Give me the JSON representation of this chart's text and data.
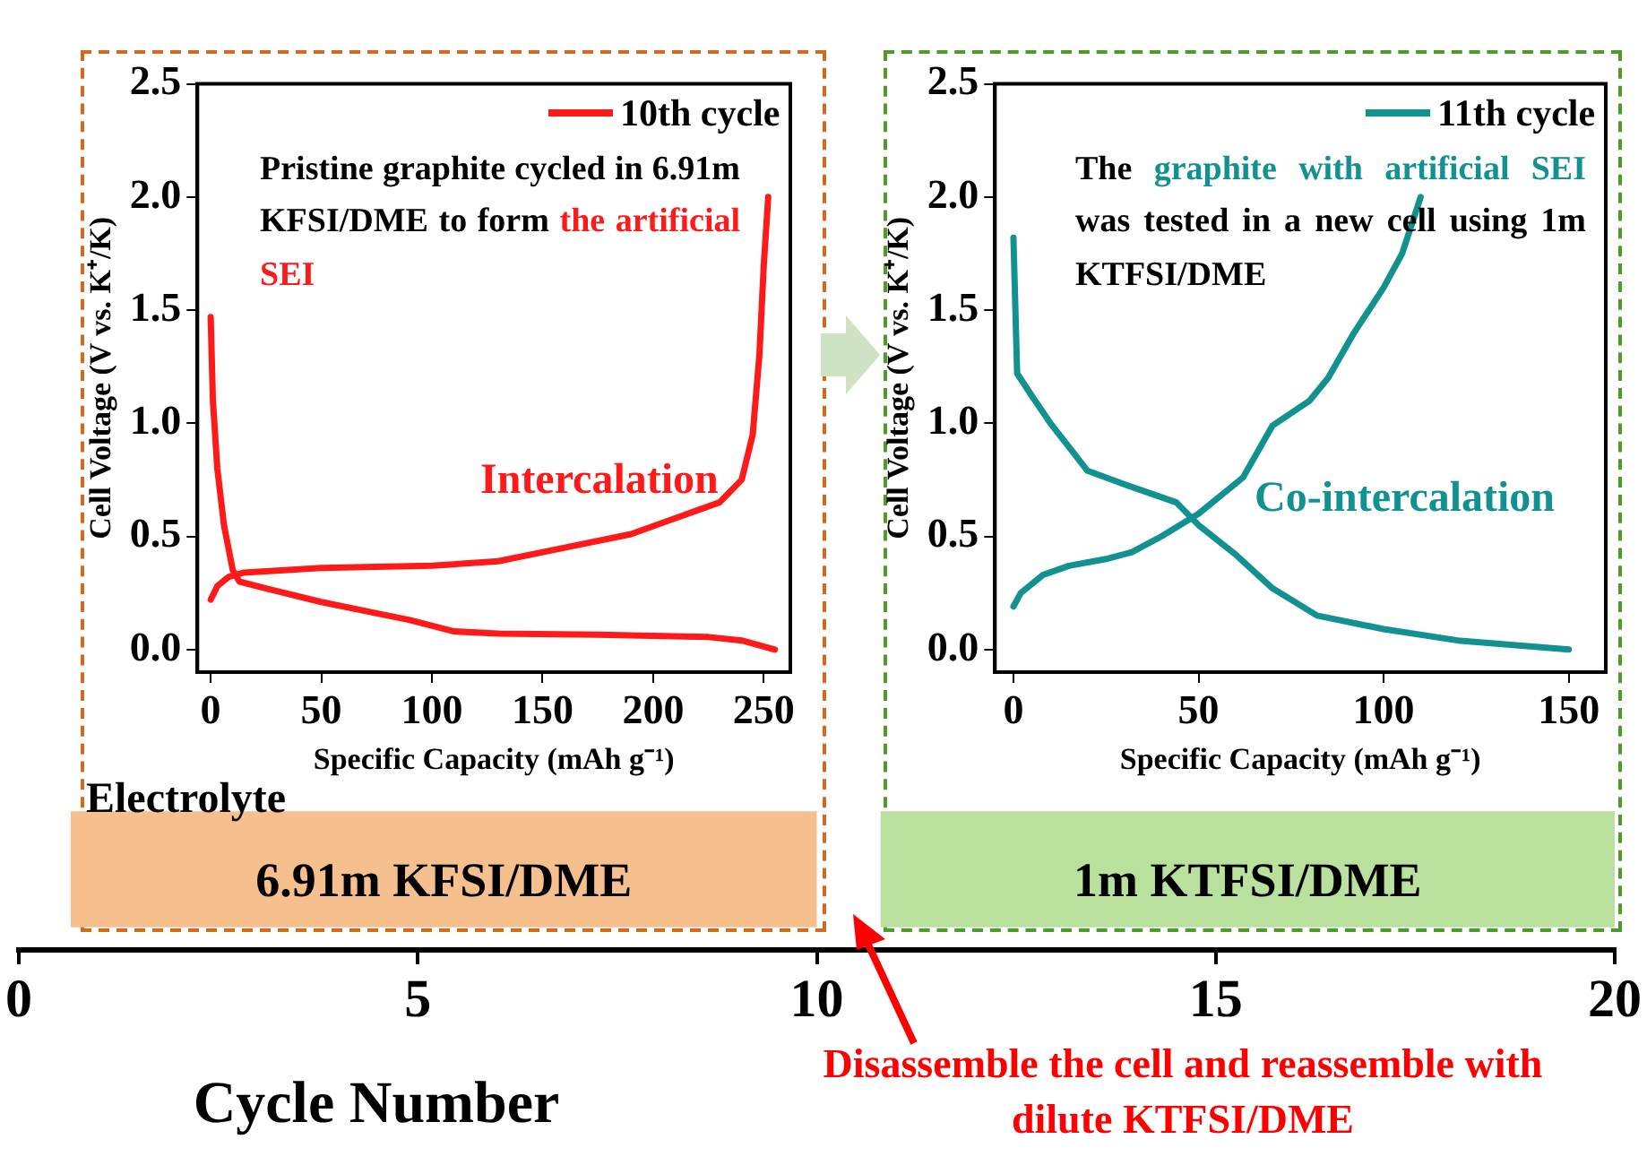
{
  "chart_data": [
    {
      "type": "line",
      "xlabel": "Specific Capacity (mAh g⁻¹)",
      "ylabel": "Cell Voltage (V vs. K⁺/K)",
      "xlim": [
        -6,
        262
      ],
      "ylim": [
        -0.1,
        2.5
      ],
      "xticks": [
        0,
        50,
        100,
        150,
        200,
        250
      ],
      "yticks": [
        {
          "value": 0,
          "label": "0.0"
        },
        0.5,
        {
          "value": 1,
          "label": "1.0"
        },
        1.5,
        {
          "value": 2,
          "label": "2.0"
        },
        2.5
      ],
      "legend": "top right",
      "annotations": [
        "Pristine graphite cycled in 6.91m KFSI/DME to form",
        "the artificial SEI",
        "Intercalation"
      ],
      "series": [
        {
          "name": "10th cycle",
          "color": "#ff1a1a",
          "x": [
            0,
            1,
            3,
            6,
            10,
            13,
            25,
            50,
            75,
            90,
            110,
            130,
            175,
            225,
            240,
            255
          ],
          "values": [
            1.47,
            1.1,
            0.8,
            0.55,
            0.35,
            0.3,
            0.27,
            0.21,
            0.16,
            0.13,
            0.08,
            0.07,
            0.065,
            0.055,
            0.04,
            0
          ]
        },
        {
          "color": "#ff1a1a",
          "x": [
            0,
            3,
            8,
            15,
            50,
            100,
            130,
            160,
            190,
            210,
            230,
            240,
            245,
            248,
            250,
            252
          ],
          "values": [
            0.22,
            0.28,
            0.32,
            0.34,
            0.36,
            0.37,
            0.39,
            0.45,
            0.51,
            0.58,
            0.65,
            0.75,
            0.95,
            1.3,
            1.7,
            2.0
          ]
        }
      ]
    },
    {
      "type": "line",
      "xlabel": "Specific Capacity (mAh g⁻¹)",
      "ylabel": "Cell Voltage (V vs. K⁺/K)",
      "xlim": [
        -5,
        160
      ],
      "ylim": [
        -0.1,
        2.5
      ],
      "xticks": [
        0,
        50,
        100,
        150
      ],
      "yticks": [
        {
          "value": 0,
          "label": "0.0"
        },
        0.5,
        {
          "value": 1,
          "label": "1.0"
        },
        1.5,
        {
          "value": 2,
          "label": "2.0"
        },
        2.5
      ],
      "legend": "top right",
      "annotations": [
        "The",
        "graphite with artificial SEI",
        "was tested in a new cell using 1m KTFSI/DME",
        "Co-intercalation"
      ],
      "series": [
        {
          "name": "11th cycle",
          "color": "#129191",
          "x": [
            0,
            1,
            5,
            10,
            20,
            30,
            44,
            50,
            60,
            70,
            82,
            100,
            120,
            150
          ],
          "values": [
            1.82,
            1.22,
            1.12,
            1.0,
            0.79,
            0.73,
            0.65,
            0.55,
            0.42,
            0.27,
            0.15,
            0.09,
            0.04,
            0
          ]
        },
        {
          "color": "#129191",
          "x": [
            0,
            2,
            8,
            15,
            25,
            32,
            40,
            50,
            62,
            70,
            80,
            85,
            92,
            100,
            105,
            110
          ],
          "values": [
            0.19,
            0.25,
            0.33,
            0.37,
            0.4,
            0.43,
            0.5,
            0.6,
            0.76,
            0.99,
            1.1,
            1.2,
            1.4,
            1.6,
            1.75,
            2.0
          ]
        }
      ]
    },
    {
      "type": "bar",
      "orientation": "horizontal",
      "xlabel": "Cycle Number",
      "xlim": [
        0,
        20
      ],
      "xticks": [
        0,
        5,
        10,
        15,
        20
      ],
      "categories": [
        null
      ],
      "series": [
        {
          "name": "6.91m KFSI/DME",
          "color": "#f5c08e",
          "base": [
            0.65
          ],
          "values": [
            9.35
          ]
        },
        {
          "name": "1m KTFSI/DME",
          "color": "#b9e09c",
          "base": [
            10.8
          ],
          "values": [
            9.2
          ]
        }
      ],
      "annotations": [
        "Electrolyte",
        "Disassemble the cell and reassemble with dilute KTFSI/DME"
      ]
    }
  ]
}
